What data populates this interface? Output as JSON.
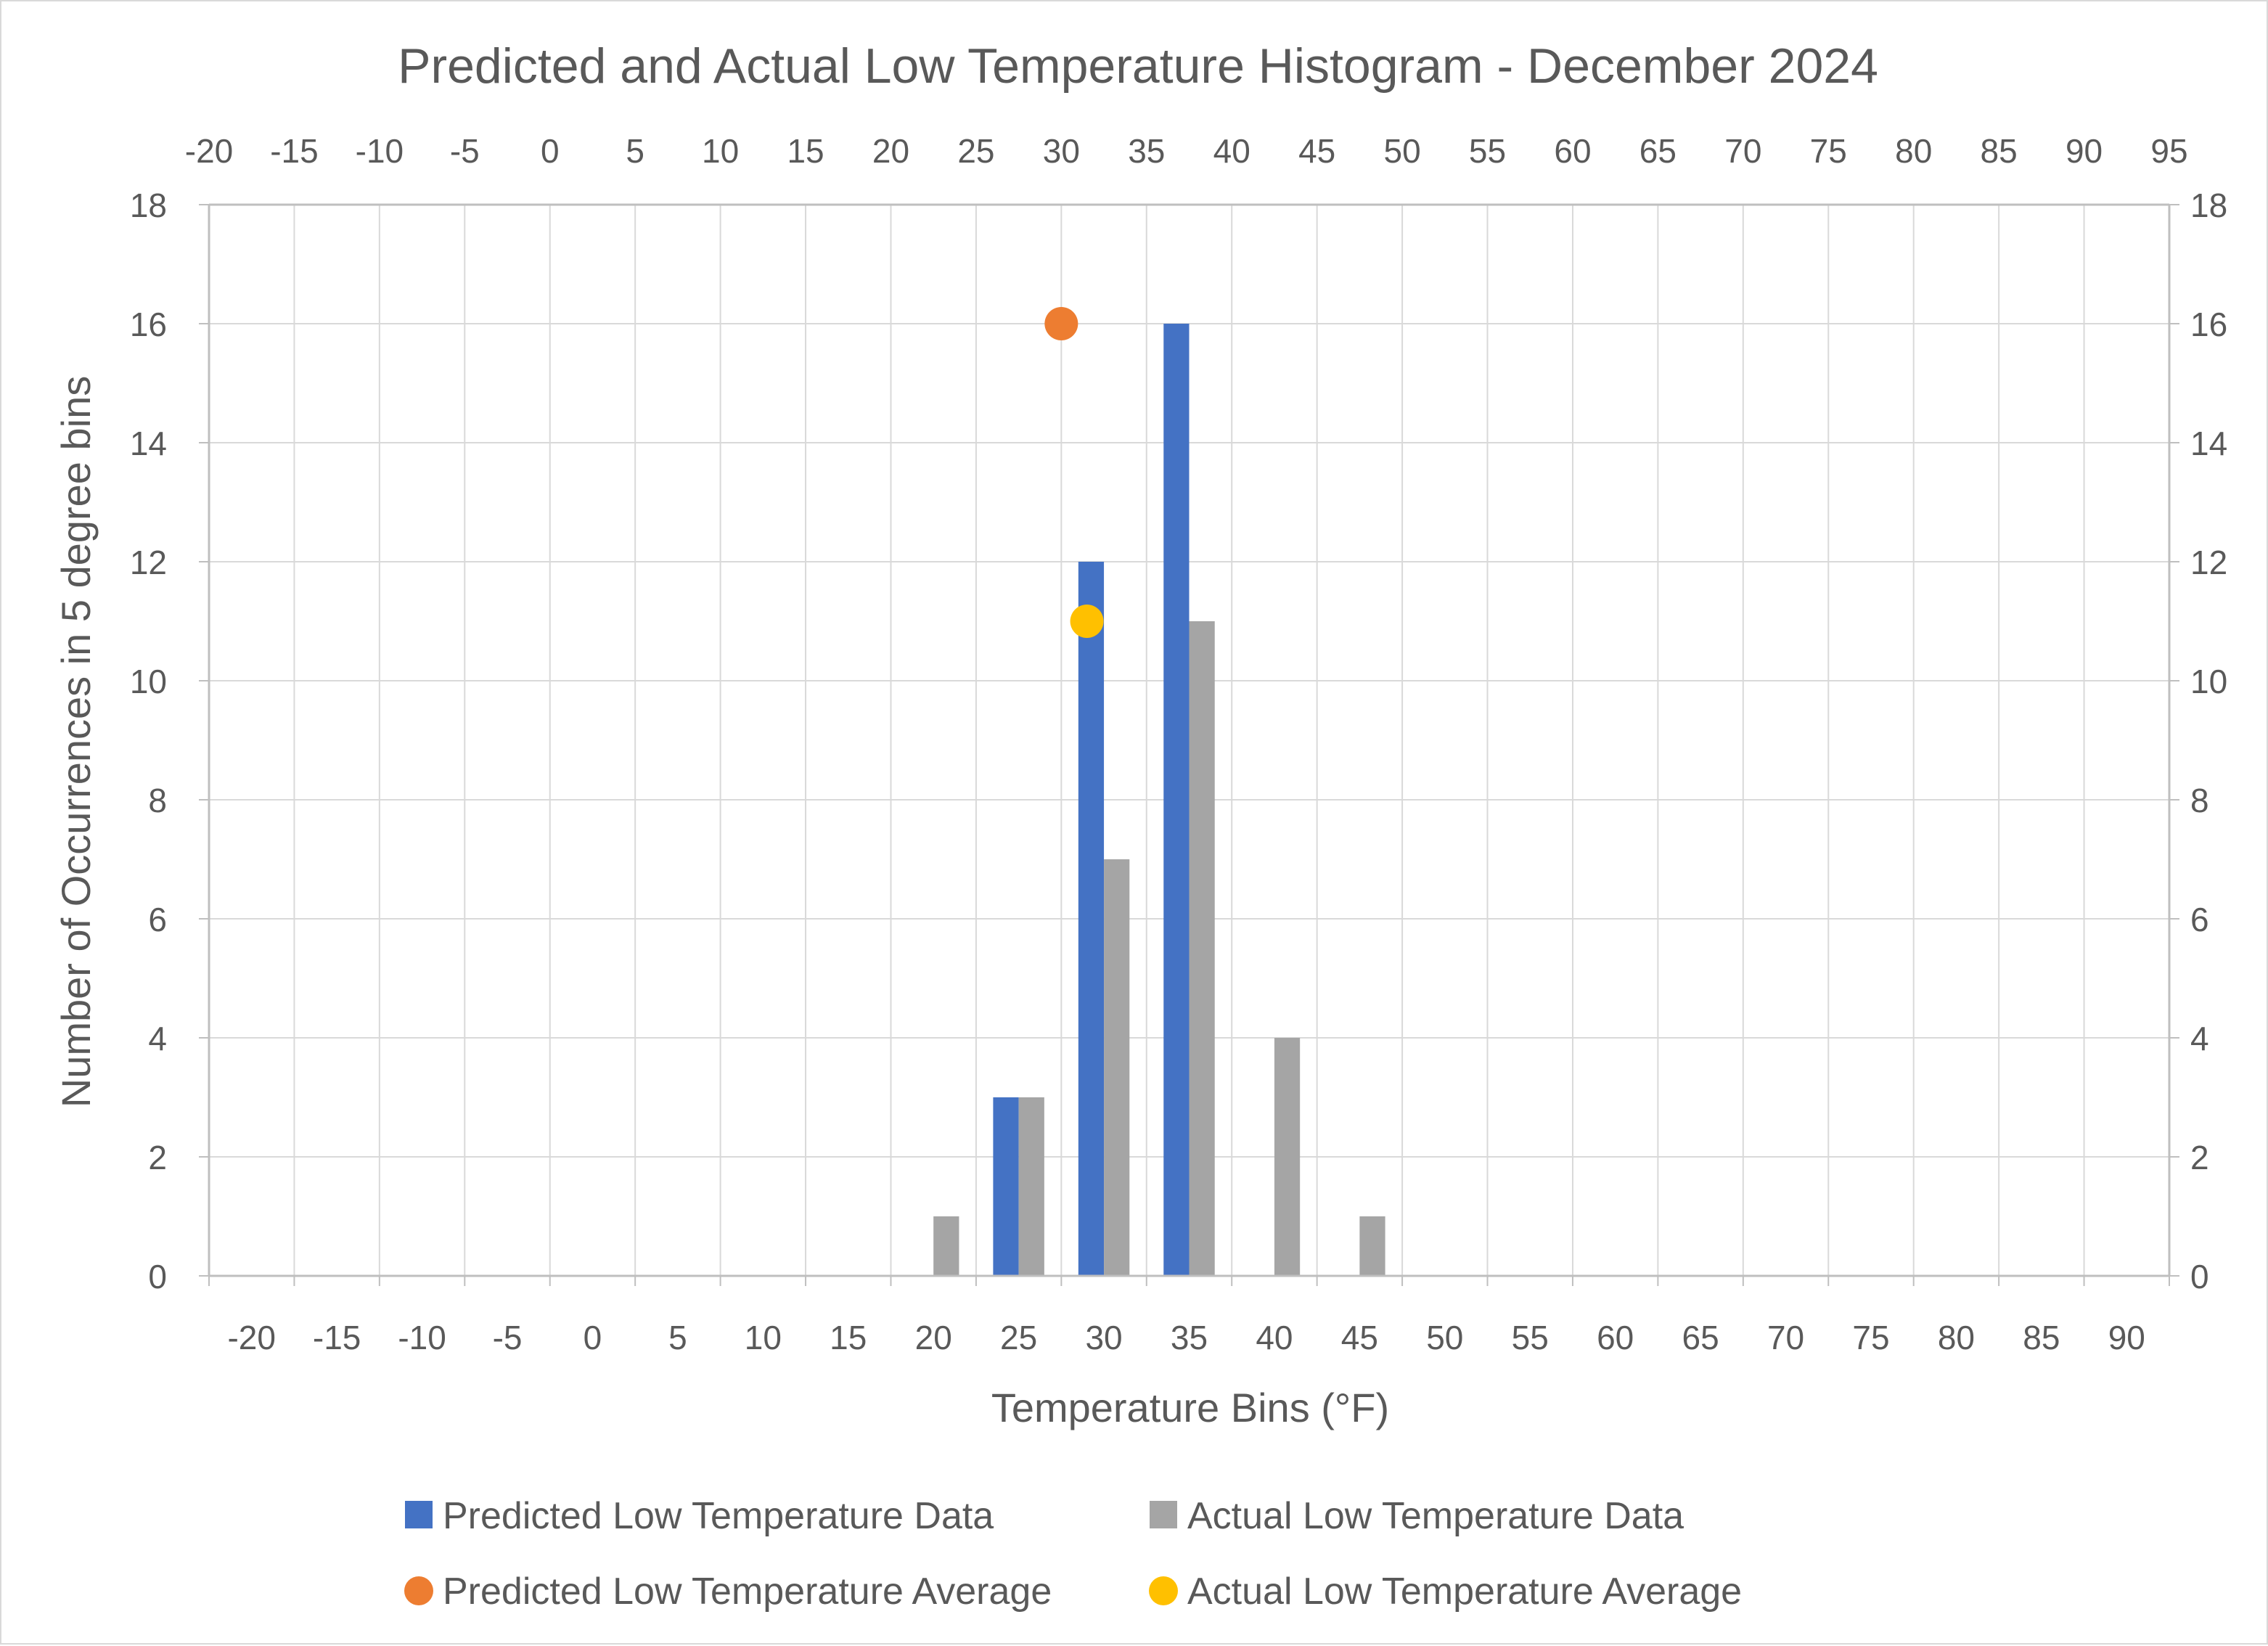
{
  "chart_data": {
    "type": "bar",
    "title": "Predicted and Actual Low Temperature Histogram - December 2024",
    "xlabel": "Temperature Bins (°F)",
    "ylabel": "Number of Occurrences in 5 degree bins",
    "ylim": [
      0,
      18
    ],
    "y_ticks": [
      "0",
      "2",
      "4",
      "6",
      "8",
      "10",
      "12",
      "14",
      "16",
      "18"
    ],
    "y2_ticks": [
      "0",
      "2",
      "4",
      "6",
      "8",
      "10",
      "12",
      "14",
      "16",
      "18"
    ],
    "categories": [
      "-20",
      "-15",
      "-10",
      "-5",
      "0",
      "5",
      "10",
      "15",
      "20",
      "25",
      "30",
      "35",
      "40",
      "45",
      "50",
      "55",
      "60",
      "65",
      "70",
      "75",
      "80",
      "85",
      "90"
    ],
    "top_axis": {
      "range": [
        -20,
        95
      ],
      "ticks": [
        "-20",
        "-15",
        "-10",
        "-5",
        "0",
        "5",
        "10",
        "15",
        "20",
        "25",
        "30",
        "35",
        "40",
        "45",
        "50",
        "55",
        "60",
        "65",
        "70",
        "75",
        "80",
        "85",
        "90",
        "95"
      ]
    },
    "grid": true,
    "legend_position": "bottom",
    "series": [
      {
        "name": "Predicted Low Temperature Data",
        "kind": "bar",
        "color": "#4472c4",
        "values": [
          0,
          0,
          0,
          0,
          0,
          0,
          0,
          0,
          0,
          3,
          12,
          16,
          0,
          0,
          0,
          0,
          0,
          0,
          0,
          0,
          0,
          0,
          0
        ]
      },
      {
        "name": "Actual Low Temperature Data",
        "kind": "bar",
        "color": "#a5a5a5",
        "values": [
          0,
          0,
          0,
          0,
          0,
          0,
          0,
          0,
          1,
          3,
          7,
          11,
          4,
          1,
          0,
          0,
          0,
          0,
          0,
          0,
          0,
          0,
          0
        ]
      },
      {
        "name": "Predicted Low Temperature Average",
        "kind": "point",
        "color": "#ed7d31",
        "x": 30,
        "y": 16
      },
      {
        "name": "Actual Low Temperature Average",
        "kind": "point",
        "color": "#ffc000",
        "x": 31.5,
        "y": 11
      }
    ]
  }
}
